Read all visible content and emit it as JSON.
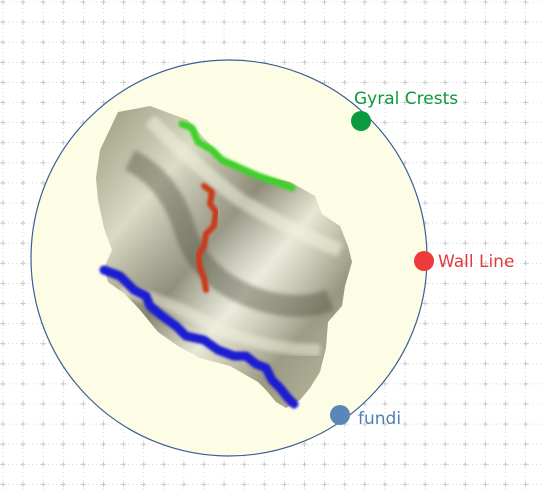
{
  "legend": {
    "gyral_crests": {
      "label": "Gyral Crests",
      "color": "#0b9a3a",
      "dot_color": "#0a9a40"
    },
    "wall_line": {
      "label": "Wall Line",
      "color": "#e23b3b",
      "dot_color": "#ee3a3a"
    },
    "fundi": {
      "label": "fundi",
      "color": "#4f7fb5",
      "dot_color": "#5b86b8"
    }
  },
  "colors": {
    "circle_fill": "#fdfde6",
    "circle_stroke": "#3c5f96",
    "grid": "#c8c8c8",
    "surface_light": "#eeeed8",
    "surface_mid": "#b9b89a",
    "surface_dark": "#6b6a55",
    "crest_stroke": "#3fd12a",
    "wall_stroke": "#c93a1a",
    "fundi_stroke": "#1f1fd0"
  }
}
